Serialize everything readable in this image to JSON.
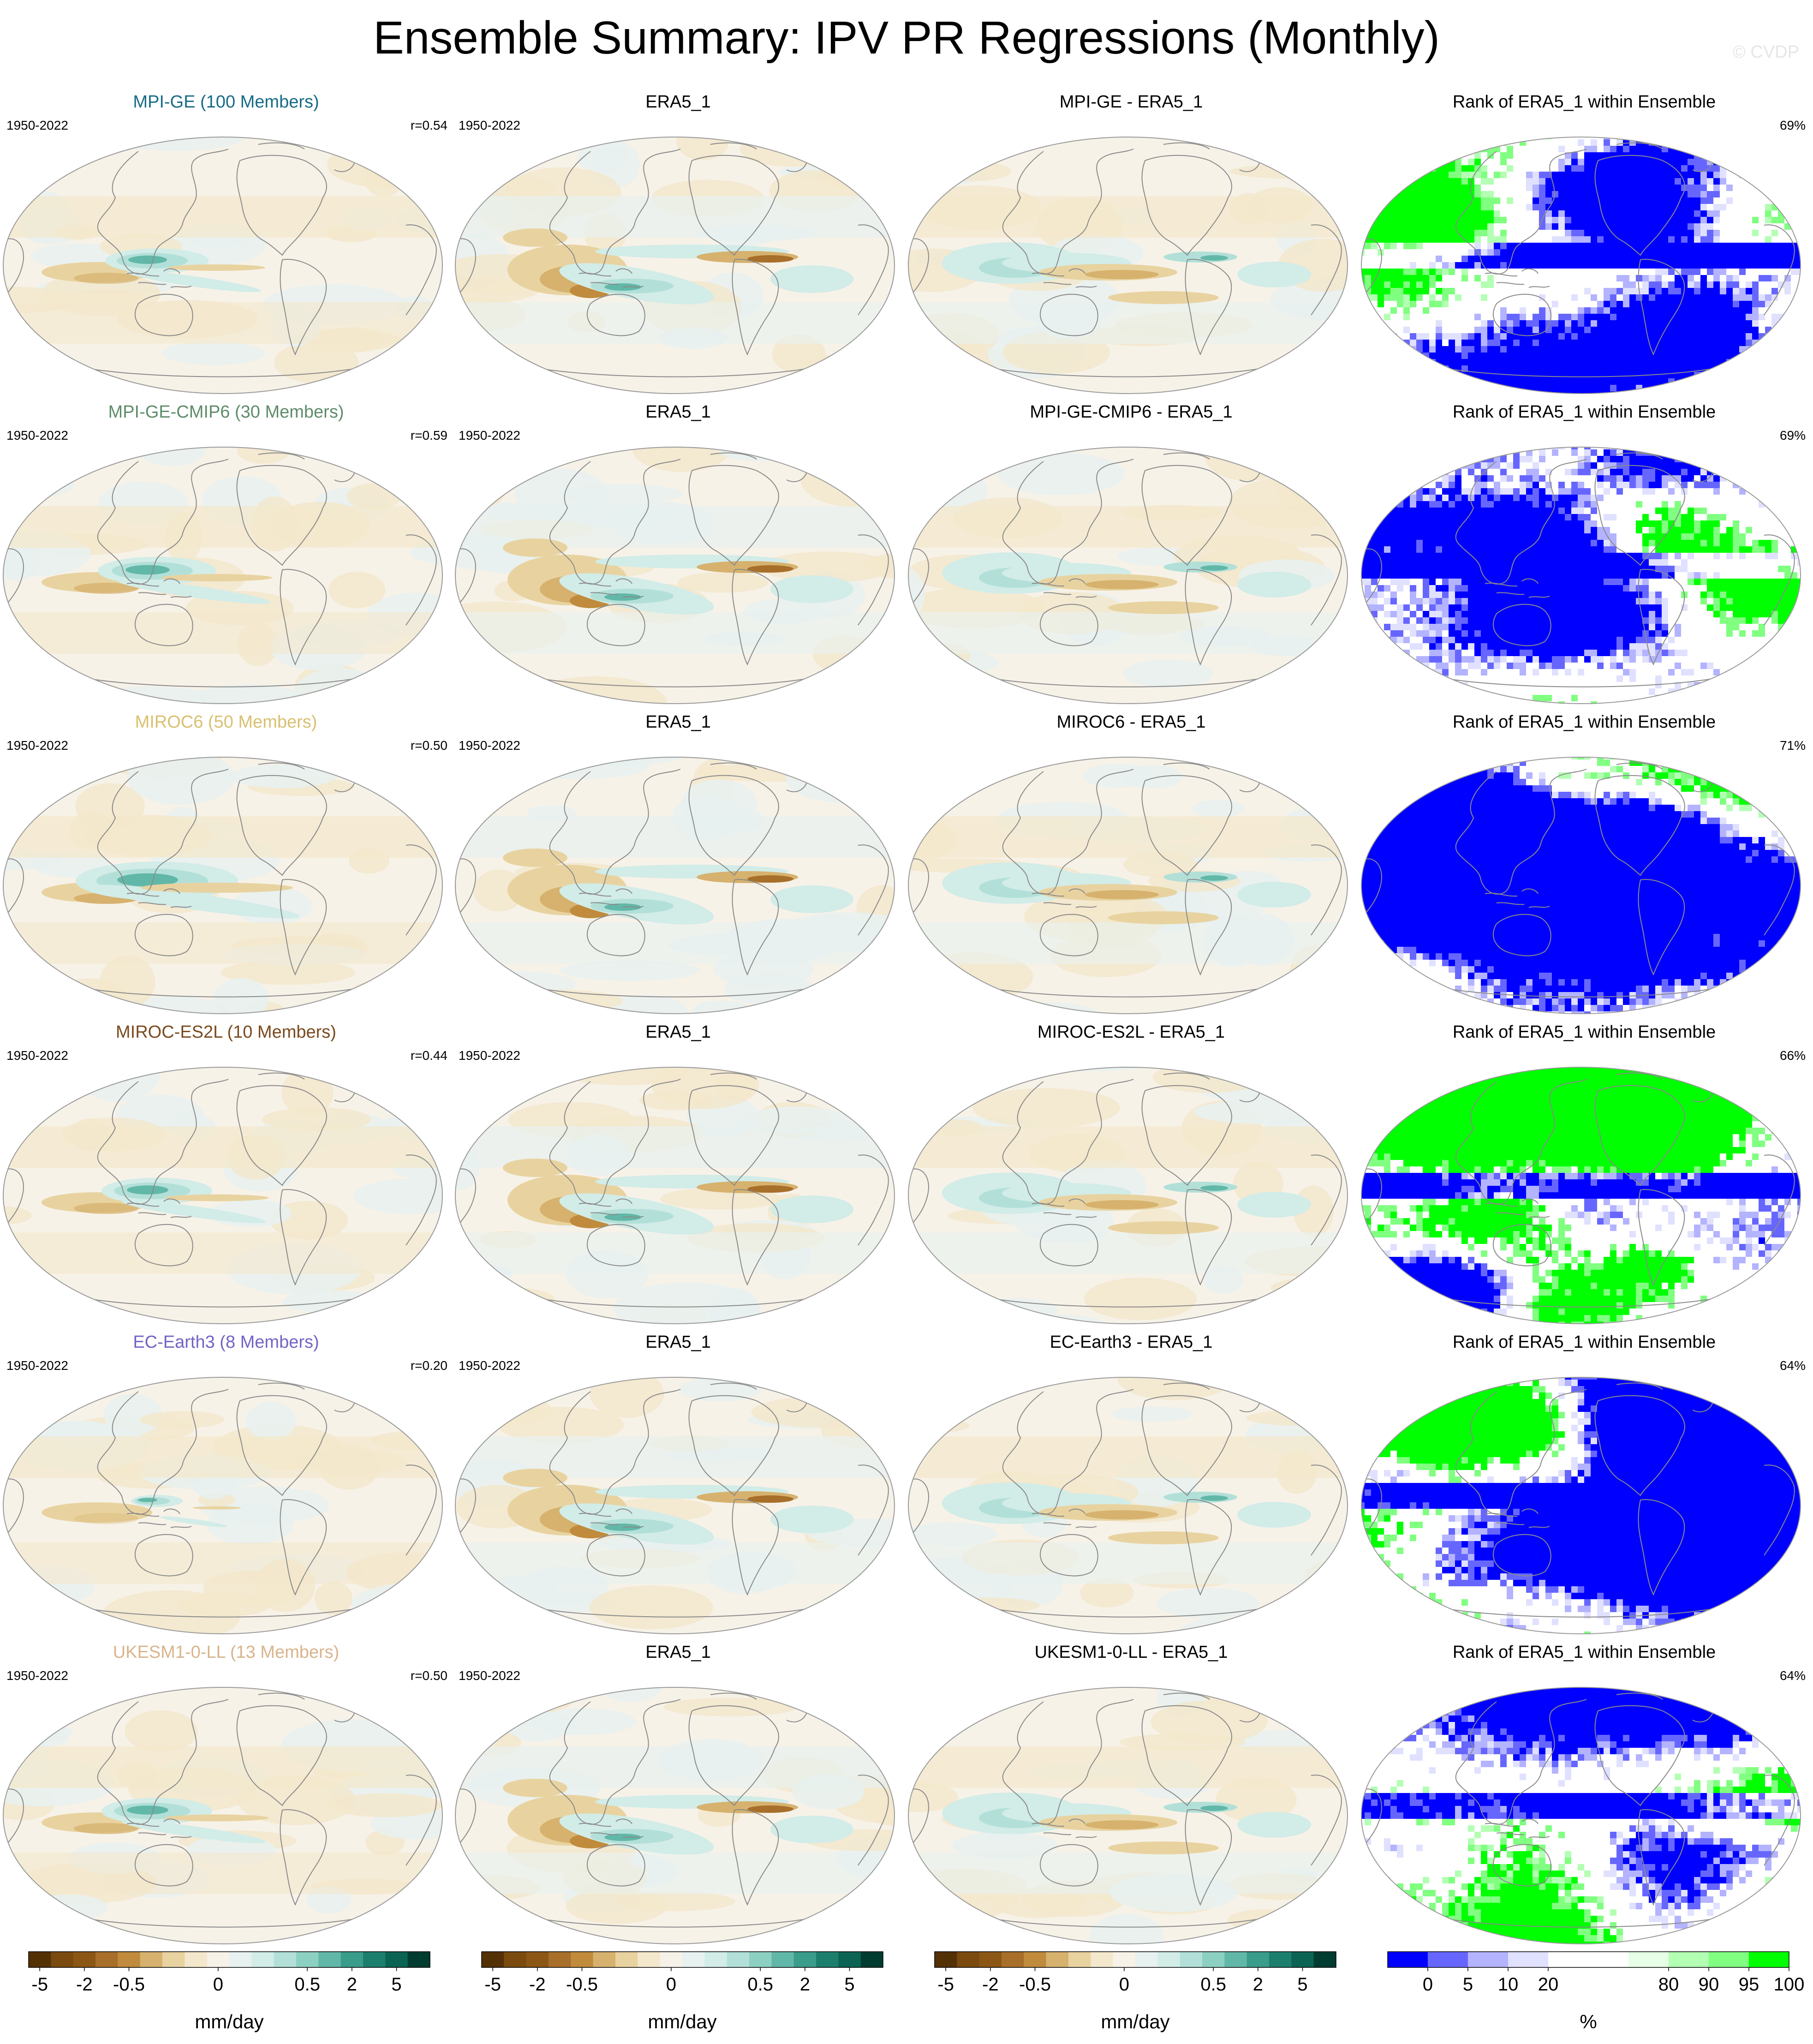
{
  "figure": {
    "title": "Ensemble Summary: IPV PR Regressions (Monthly)",
    "copyright": "© CVDP"
  },
  "colors": {
    "model_titles": [
      "#176b87",
      "#5e8c6a",
      "#d9c070",
      "#7a4a1e",
      "#7464c4",
      "#d8b48c"
    ],
    "brbg": [
      "#543005",
      "#7a4a0f",
      "#8c5614",
      "#a86f2a",
      "#c08b3c",
      "#d6b26e",
      "#e8d3a0",
      "#f3e8cc",
      "#f7f2e8",
      "#e7f1f0",
      "#d2ece8",
      "#b2e0d8",
      "#8cd0c2",
      "#62b8a8",
      "#3a9c8b",
      "#1c7f6e",
      "#0b6453",
      "#003c30"
    ],
    "rank": [
      "#0000ff",
      "#6666ff",
      "#b3b3ff",
      "#e0e0ff",
      "#ffffff",
      "#ffffff",
      "#e6ffe6",
      "#b3ffb3",
      "#80ff80",
      "#00ff00"
    ]
  },
  "rows": [
    {
      "model_title": "MPI-GE (100 Members)",
      "period": "1950-2022",
      "r": "r=0.54",
      "obs_title": "ERA5_1",
      "obs_period": "1950-2022",
      "diff_title": "MPI-GE - ERA5_1",
      "rank_title": "Rank of ERA5_1 within Ensemble",
      "rank_pct": "69%"
    },
    {
      "model_title": "MPI-GE-CMIP6 (30 Members)",
      "period": "1950-2022",
      "r": "r=0.59",
      "obs_title": "ERA5_1",
      "obs_period": "1950-2022",
      "diff_title": "MPI-GE-CMIP6 - ERA5_1",
      "rank_title": "Rank of ERA5_1 within Ensemble",
      "rank_pct": "69%"
    },
    {
      "model_title": "MIROC6 (50 Members)",
      "period": "1950-2022",
      "r": "r=0.50",
      "obs_title": "ERA5_1",
      "obs_period": "1950-2022",
      "diff_title": "MIROC6 - ERA5_1",
      "rank_title": "Rank of ERA5_1 within Ensemble",
      "rank_pct": "71%"
    },
    {
      "model_title": "MIROC-ES2L (10 Members)",
      "period": "1950-2022",
      "r": "r=0.44",
      "obs_title": "ERA5_1",
      "obs_period": "1950-2022",
      "diff_title": "MIROC-ES2L - ERA5_1",
      "rank_title": "Rank of ERA5_1 within Ensemble",
      "rank_pct": "66%"
    },
    {
      "model_title": "EC-Earth3 (8 Members)",
      "period": "1950-2022",
      "r": "r=0.20",
      "obs_title": "ERA5_1",
      "obs_period": "1950-2022",
      "diff_title": "EC-Earth3 - ERA5_1",
      "rank_title": "Rank of ERA5_1 within Ensemble",
      "rank_pct": "64%"
    },
    {
      "model_title": "UKESM1-0-LL (13 Members)",
      "period": "1950-2022",
      "r": "r=0.50",
      "obs_title": "ERA5_1",
      "obs_period": "1950-2022",
      "diff_title": "UKESM1-0-LL - ERA5_1",
      "rank_title": "Rank of ERA5_1 within Ensemble",
      "rank_pct": "64%"
    }
  ],
  "colorbars": {
    "pr": {
      "tick_labels": [
        "-5",
        "-2",
        "-0.5",
        "0",
        "0.5",
        "2",
        "5"
      ],
      "label": "mm/day"
    },
    "rank": {
      "tick_labels": [
        "0",
        "5",
        "10",
        "20",
        "80",
        "90",
        "95",
        "100"
      ],
      "label": "%"
    }
  }
}
